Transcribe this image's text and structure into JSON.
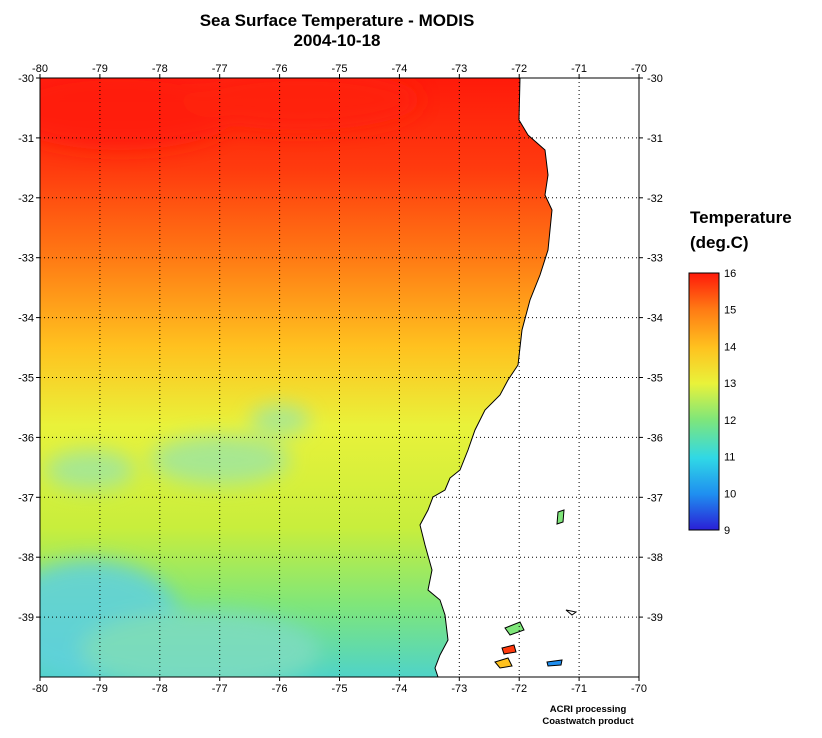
{
  "title": "Sea Surface Temperature - MODIS",
  "date": "2004-10-18",
  "map": {
    "lon_range": [
      -80,
      -70
    ],
    "lat_range": [
      -40,
      -30
    ],
    "lon_ticks": [
      "-80",
      "-79",
      "-78",
      "-77",
      "-76",
      "-75",
      "-74",
      "-73",
      "-72",
      "-71",
      "-70"
    ],
    "lat_ticks": [
      "-30",
      "-31",
      "-32",
      "-33",
      "-34",
      "-35",
      "-36",
      "-37",
      "-38",
      "-39"
    ],
    "grid": "dotted, 1 degree",
    "land_color": "#ffffff",
    "coastline_color": "#000000"
  },
  "legend": {
    "title_line1": "Temperature",
    "title_line2": "(deg.C)",
    "ticks": [
      "16",
      "15",
      "14",
      "13",
      "12",
      "11",
      "10",
      "9"
    ],
    "min": 9,
    "max": 16,
    "colors": [
      "#2a1fd6",
      "#1f8ff0",
      "#30d8e6",
      "#7fe67a",
      "#e9f23a",
      "#ffc21f",
      "#ff7a14",
      "#ff1a0a"
    ]
  },
  "credit": {
    "line1": "ACRI processing",
    "line2": "Coastwatch product"
  }
}
